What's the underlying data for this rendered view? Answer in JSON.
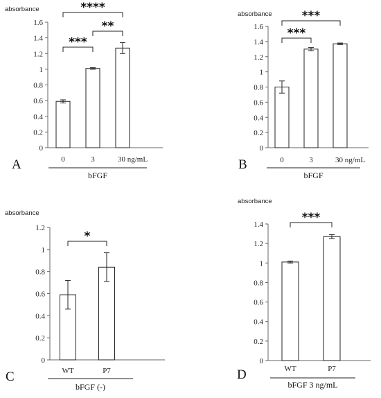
{
  "chart_data": [
    {
      "type": "bar",
      "panel_label": "A",
      "ylabel": "absorbance",
      "ylim": [
        0,
        1.6
      ],
      "yticks": [
        "0",
        "0.2",
        "0.4",
        "0.6",
        "0.8",
        "1",
        "1.2",
        "1.4",
        "1.6"
      ],
      "categories": [
        "0",
        "3",
        "30 ng/mL"
      ],
      "values": [
        0.59,
        1.01,
        1.27
      ],
      "errors": [
        0.02,
        0.01,
        0.07
      ],
      "xlabel": "bFGF",
      "significance": [
        {
          "from": 0,
          "to": 1,
          "label": "***"
        },
        {
          "from": 1,
          "to": 2,
          "label": "**"
        },
        {
          "from": 0,
          "to": 2,
          "label": "****"
        }
      ]
    },
    {
      "type": "bar",
      "panel_label": "B",
      "ylabel": "absorbance",
      "ylim": [
        0,
        1.6
      ],
      "yticks": [
        "0",
        "0.2",
        "0.4",
        "0.6",
        "0.8",
        "1",
        "1.2",
        "1.4",
        "1.6"
      ],
      "categories": [
        "0",
        "3",
        "30 ng/mL"
      ],
      "values": [
        0.8,
        1.3,
        1.37
      ],
      "errors": [
        0.08,
        0.02,
        0.01
      ],
      "xlabel": "bFGF",
      "significance": [
        {
          "from": 0,
          "to": 1,
          "label": "***"
        },
        {
          "from": 0,
          "to": 2,
          "label": "***"
        }
      ]
    },
    {
      "type": "bar",
      "panel_label": "C",
      "ylabel": "absorbance",
      "ylim": [
        0,
        1.2
      ],
      "yticks": [
        "0",
        "0.2",
        "0.4",
        "0.6",
        "0.8",
        "1",
        "1.2"
      ],
      "categories": [
        "WT",
        "P7"
      ],
      "values": [
        0.59,
        0.84
      ],
      "errors": [
        0.13,
        0.13
      ],
      "xlabel": "bFGF (-)",
      "significance": [
        {
          "from": 0,
          "to": 1,
          "label": "*"
        }
      ]
    },
    {
      "type": "bar",
      "panel_label": "D",
      "ylabel": "absorbance",
      "ylim": [
        0,
        1.4
      ],
      "yticks": [
        "0",
        "0.2",
        "0.4",
        "0.6",
        "0.8",
        "1",
        "1.2",
        "1.4"
      ],
      "categories": [
        "WT",
        "P7"
      ],
      "values": [
        1.01,
        1.27
      ],
      "errors": [
        0.01,
        0.02
      ],
      "xlabel": "bFGF 3 ng/mL",
      "significance": [
        {
          "from": 0,
          "to": 1,
          "label": "***"
        }
      ]
    }
  ]
}
